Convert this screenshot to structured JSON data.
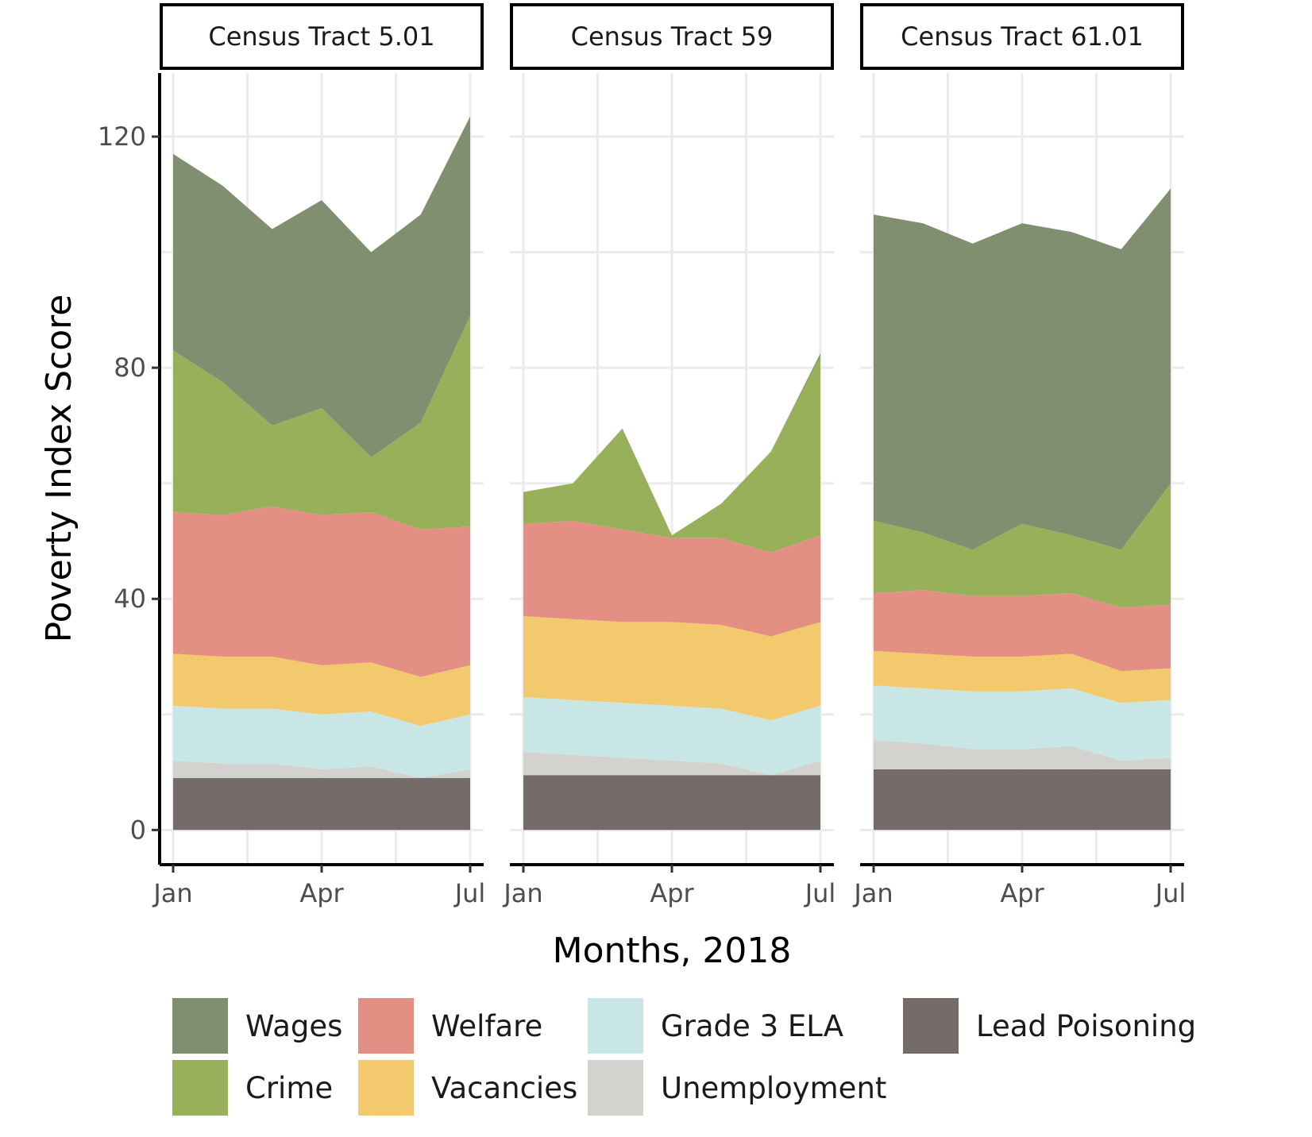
{
  "chart_data": {
    "type": "area",
    "stacked": true,
    "facet_by": "Census Tract",
    "xlabel": "Months, 2018",
    "ylabel": "Poverty Index Score",
    "x": [
      1,
      2,
      3,
      4,
      5,
      6,
      7
    ],
    "x_ticks": [
      {
        "value": 1,
        "label": "Jan"
      },
      {
        "value": 4,
        "label": "Apr"
      },
      {
        "value": 7,
        "label": "Jul"
      }
    ],
    "ylim": [
      -6,
      131
    ],
    "y_ticks": [
      0,
      40,
      80,
      120
    ],
    "grid": true,
    "legend_position": "bottom",
    "stack_order_bottom_to_top": [
      "Lead Poisoning",
      "Unemployment",
      "Grade 3 ELA",
      "Vacancies",
      "Welfare",
      "Crime",
      "Wages"
    ],
    "legend": [
      {
        "name": "Wages",
        "color": "#808f6f"
      },
      {
        "name": "Crime",
        "color": "#99b05a"
      },
      {
        "name": "Welfare",
        "color": "#e48f83"
      },
      {
        "name": "Vacancies",
        "color": "#f3c96d"
      },
      {
        "name": "Grade 3 ELA",
        "color": "#c9e6e7"
      },
      {
        "name": "Unemployment",
        "color": "#d4d2cf"
      },
      {
        "name": "Lead Poisoning",
        "color": "#756c69"
      }
    ],
    "panels": [
      {
        "title": "Census Tract 5.01",
        "series": [
          {
            "name": "Lead Poisoning",
            "values": [
              9,
              9,
              9,
              9,
              9,
              9,
              9
            ]
          },
          {
            "name": "Unemployment",
            "values": [
              3,
              2.5,
              2.5,
              1.5,
              2,
              0,
              1.5
            ]
          },
          {
            "name": "Grade 3 ELA",
            "values": [
              9.5,
              9.5,
              9.5,
              9.5,
              9.5,
              9,
              9.5
            ]
          },
          {
            "name": "Vacancies",
            "values": [
              9,
              9,
              9,
              8.5,
              8.5,
              8.5,
              8.5
            ]
          },
          {
            "name": "Welfare",
            "values": [
              24.5,
              24.5,
              26,
              26,
              26,
              25.5,
              24
            ]
          },
          {
            "name": "Crime",
            "values": [
              28,
              23,
              14,
              18.5,
              9.5,
              18.5,
              36.5
            ]
          },
          {
            "name": "Wages",
            "values": [
              34,
              34,
              34,
              36,
              35.5,
              36,
              34.5
            ]
          }
        ]
      },
      {
        "title": "Census Tract 59",
        "series": [
          {
            "name": "Lead Poisoning",
            "values": [
              9.5,
              9.5,
              9.5,
              9.5,
              9.5,
              9.5,
              9.5
            ]
          },
          {
            "name": "Unemployment",
            "values": [
              4,
              3.5,
              3,
              2.5,
              2,
              0,
              2.5
            ]
          },
          {
            "name": "Grade 3 ELA",
            "values": [
              9.5,
              9.5,
              9.5,
              9.5,
              9.5,
              9.5,
              9.5
            ]
          },
          {
            "name": "Vacancies",
            "values": [
              14,
              14,
              14,
              14.5,
              14.5,
              14.5,
              14.5
            ]
          },
          {
            "name": "Welfare",
            "values": [
              16,
              17,
              16,
              14.5,
              15,
              14.5,
              15
            ]
          },
          {
            "name": "Crime",
            "values": [
              5.5,
              6.5,
              17.5,
              0.5,
              6,
              17.5,
              31
            ]
          },
          {
            "name": "Wages",
            "values": [
              0,
              0,
              0,
              0,
              0,
              0,
              0.5
            ]
          }
        ]
      },
      {
        "title": "Census Tract 61.01",
        "series": [
          {
            "name": "Lead Poisoning",
            "values": [
              10.5,
              10.5,
              10.5,
              10.5,
              10.5,
              10.5,
              10.5
            ]
          },
          {
            "name": "Unemployment",
            "values": [
              5,
              4.5,
              3.5,
              3.5,
              4,
              1.5,
              2
            ]
          },
          {
            "name": "Grade 3 ELA",
            "values": [
              9.5,
              9.5,
              10,
              10,
              10,
              10,
              10
            ]
          },
          {
            "name": "Vacancies",
            "values": [
              6,
              6,
              6,
              6,
              6,
              5.5,
              5.5
            ]
          },
          {
            "name": "Welfare",
            "values": [
              10,
              11,
              10.5,
              10.5,
              10.5,
              11,
              11
            ]
          },
          {
            "name": "Crime",
            "values": [
              12.5,
              10,
              8,
              12.5,
              10,
              10,
              21
            ]
          },
          {
            "name": "Wages",
            "values": [
              53,
              53.5,
              53,
              52,
              52.5,
              52,
              51
            ]
          }
        ]
      }
    ]
  }
}
